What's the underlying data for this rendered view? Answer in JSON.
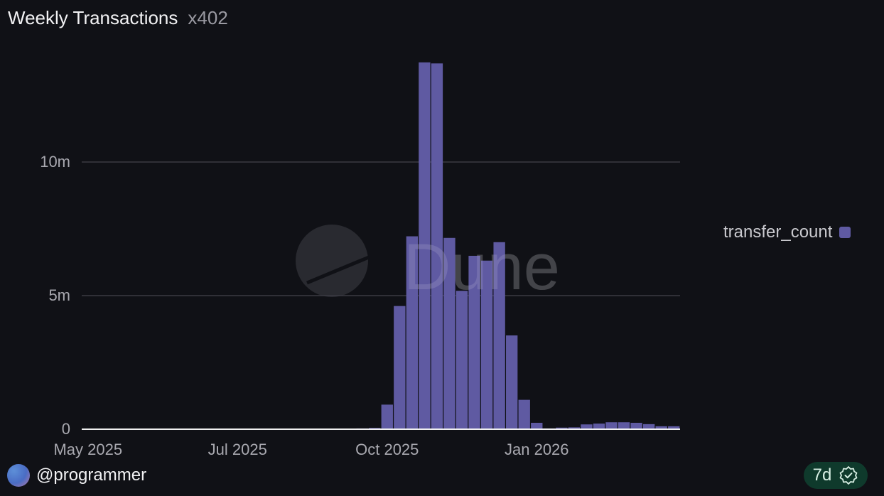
{
  "header": {
    "title": "Weekly Transactions",
    "count": "x402"
  },
  "footer": {
    "username": "@programmer",
    "refresh_badge": "7d",
    "badge_icon": "verified-check-icon"
  },
  "watermark": "Dune",
  "colors": {
    "bar": "#5f5aa2",
    "background": "#101116",
    "grid": "#3a3b42",
    "badge_bg": "#0f3a2c"
  },
  "chart_data": {
    "type": "bar",
    "title": "Weekly Transactions",
    "xlabel": "",
    "ylabel": "",
    "ylim": [
      0,
      14.5
    ],
    "y_unit": "m",
    "y_ticks": [
      {
        "value": 0,
        "label": "0"
      },
      {
        "value": 5,
        "label": "5m"
      },
      {
        "value": 10,
        "label": "10m"
      }
    ],
    "x_ticks": [
      {
        "bar_index": 0.5,
        "label": "May 2025"
      },
      {
        "bar_index": 12.5,
        "label": "Jul 2025"
      },
      {
        "bar_index": 24.5,
        "label": "Oct 2025"
      },
      {
        "bar_index": 36.5,
        "label": "Jan 2026"
      }
    ],
    "grid": true,
    "legend_position": "right",
    "series": [
      {
        "name": "transfer_count",
        "values_millions": [
          0,
          0,
          0,
          0,
          0,
          0,
          0,
          0,
          0,
          0,
          0,
          0,
          0,
          0.01,
          0,
          0,
          0.02,
          0.02,
          0.02,
          0.02,
          0.02,
          0.02,
          0.03,
          0.05,
          0.92,
          4.61,
          7.22,
          13.73,
          13.69,
          7.16,
          5.18,
          6.49,
          6.31,
          7.0,
          3.51,
          1.1,
          0.24,
          0.03,
          0.06,
          0.07,
          0.18,
          0.21,
          0.26,
          0.26,
          0.24,
          0.19,
          0.11,
          0.11
        ]
      }
    ]
  }
}
